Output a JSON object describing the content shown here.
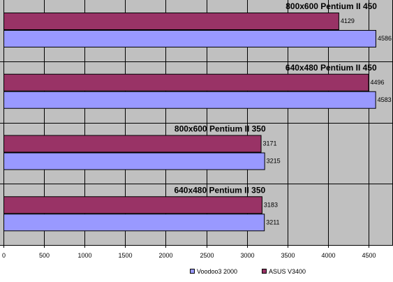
{
  "colors": {
    "background": "#c0c0c0",
    "gridline": "#000000",
    "series_voodoo": "#9999ff",
    "series_asus": "#993366"
  },
  "chart_data": {
    "type": "bar",
    "orientation": "horizontal",
    "title": "",
    "xlabel": "",
    "ylabel": "",
    "xlim": [
      0,
      4500
    ],
    "x_ticks": [
      0,
      500,
      1000,
      1500,
      2000,
      2500,
      3000,
      3500,
      4000,
      4500
    ],
    "grid": true,
    "legend_placement": "bottom-center",
    "categories": [
      "800x600 Pentium II 450",
      "640x480 Pentium II 450",
      "800x600 Pentium II 350",
      "640x480 Pentium II 350"
    ],
    "series": [
      {
        "name": "ASUS V3400",
        "values": [
          4129,
          4496,
          3171,
          3183
        ]
      },
      {
        "name": "Voodoo3 2000",
        "values": [
          4586,
          4583,
          3215,
          3211
        ]
      }
    ]
  }
}
